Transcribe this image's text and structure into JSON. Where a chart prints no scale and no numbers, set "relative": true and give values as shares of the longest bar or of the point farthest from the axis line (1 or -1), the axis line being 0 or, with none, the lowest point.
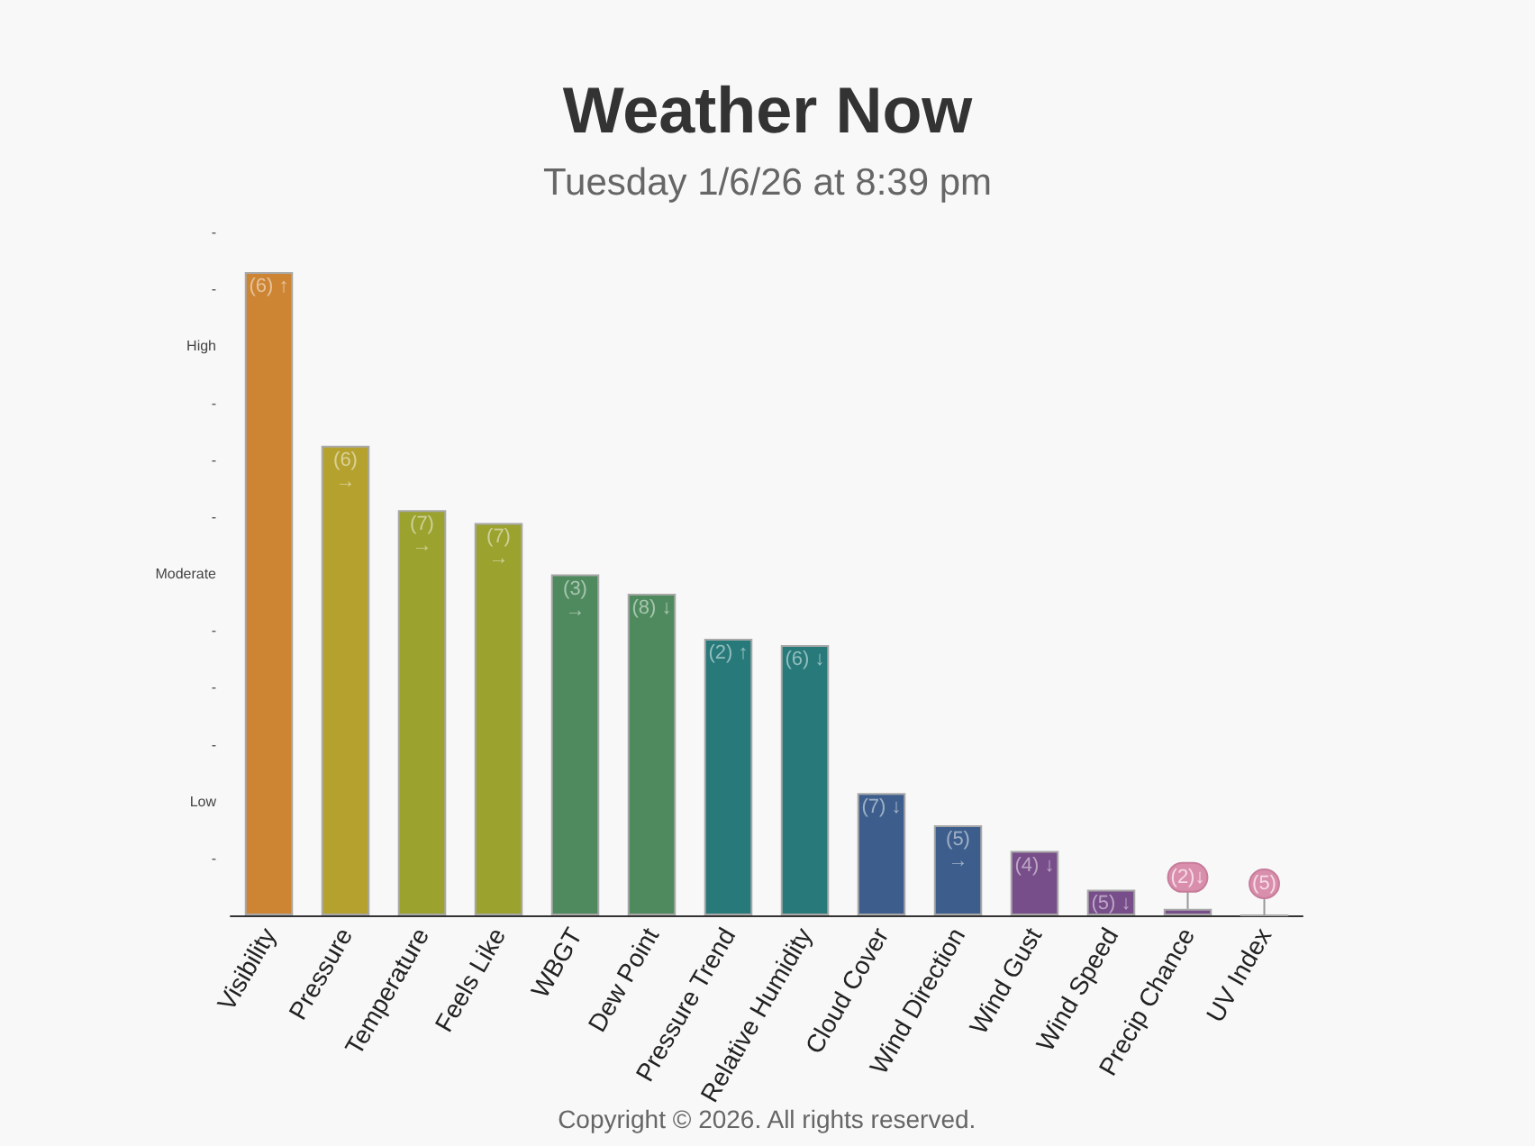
{
  "chart_data": {
    "type": "bar",
    "title": "Weather Now",
    "subtitle": "Tuesday 1/6/26 at 8:39 pm",
    "relative": true,
    "categories": [
      "Visibility",
      "Pressure",
      "Temperature",
      "Feels Like",
      "WBGT",
      "Dew Point",
      "Pressure Trend",
      "Relative Humidity",
      "Cloud Cover",
      "Wind Direction",
      "Wind Gust",
      "Wind Speed",
      "Precip Chance",
      "UV Index"
    ],
    "values": [
      1,
      0.73,
      0.63,
      0.61,
      0.53,
      0.5,
      0.43,
      0.42,
      0.19,
      0.14,
      0.1,
      0.04,
      0.01,
      0
    ],
    "colors": [
      "#cd8534",
      "#b5a22e",
      "#9ba22e",
      "#9ba22e",
      "#4f8a5e",
      "#4f8a5e",
      "#27797a",
      "#27797a",
      "#3d5e8c",
      "#3d5e8c",
      "#774d8a",
      "#774d8a",
      "#774d8a",
      "#a8a8a8"
    ],
    "annotations": [
      "-",
      "-",
      "High",
      "-",
      "-",
      "-",
      "Moderate",
      "-",
      "-",
      "-",
      "Low",
      "-",
      {
        "text": "(6) ↑",
        "x": "Visibility",
        "y": 1
      },
      {
        "text": "(6)\n→",
        "x": "Pressure",
        "y": 0.73
      },
      {
        "text": "(7)\n→",
        "x": "Temperature",
        "y": 0.63
      },
      {
        "text": "(7)\n→",
        "x": "Feels Like",
        "y": 0.61
      },
      {
        "text": "(3)\n→",
        "x": "WBGT",
        "y": 0.53
      },
      {
        "text": "(8) ↓",
        "x": "Dew Point",
        "y": 0.5
      },
      {
        "text": "(2) ↑",
        "x": "Pressure Trend",
        "y": 0.43
      },
      {
        "text": "(6) ↓",
        "x": "Relative Humidity",
        "y": 0.42
      },
      {
        "text": "(7) ↓",
        "x": "Cloud Cover",
        "y": 0.19
      },
      {
        "text": "(5)\n→",
        "x": "Wind Direction",
        "y": 0.14
      },
      {
        "text": "(4) ↓",
        "x": "Wind Gust",
        "y": 0.1
      },
      {
        "text": "(5) ↓",
        "x": "Wind Speed",
        "y": 0.04
      },
      {
        "text": "(2)↓",
        "x": "Precip Chance",
        "y": 0.01
      },
      {
        "text": "(5)",
        "x": "UV Index",
        "y": 0
      },
      "Copyright © 2026. All rights reserved."
    ]
  }
}
